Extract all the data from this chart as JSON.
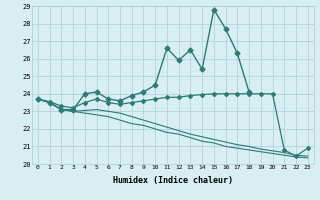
{
  "xlabel": "Humidex (Indice chaleur)",
  "ylabel": "",
  "xlim": [
    -0.5,
    23.5
  ],
  "ylim": [
    20,
    29.0
  ],
  "yticks": [
    20,
    21,
    22,
    23,
    24,
    25,
    26,
    27,
    28,
    29
  ],
  "xticks": [
    0,
    1,
    2,
    3,
    4,
    5,
    6,
    7,
    8,
    9,
    10,
    11,
    12,
    13,
    14,
    15,
    16,
    17,
    18,
    19,
    20,
    21,
    22,
    23
  ],
  "bg_color": "#d7eef3",
  "grid_color": "#aecdd5",
  "line_color": "#2e7b6f",
  "lines": [
    {
      "x": [
        0,
        1,
        2,
        3,
        4,
        5,
        6,
        7,
        8,
        9,
        10,
        11,
        12,
        13,
        14,
        15,
        16,
        17,
        18,
        19,
        20,
        21,
        22,
        23
      ],
      "y": [
        23.7,
        23.5,
        23.1,
        23.1,
        24.0,
        24.1,
        23.7,
        23.6,
        23.9,
        24.1,
        24.5,
        26.6,
        25.9,
        26.5,
        25.4,
        28.8,
        27.7,
        26.3,
        24.1,
        null,
        null,
        null,
        null,
        null
      ],
      "marker": "D",
      "markersize": 2.5,
      "linewidth": 1.0
    },
    {
      "x": [
        0,
        1,
        2,
        3,
        4,
        5,
        6,
        7,
        8,
        9,
        10,
        11,
        12,
        13,
        14,
        15,
        16,
        17,
        18,
        19,
        20,
        21,
        22,
        23
      ],
      "y": [
        23.7,
        23.55,
        23.3,
        23.2,
        23.5,
        23.7,
        23.5,
        23.4,
        23.5,
        23.6,
        23.7,
        23.8,
        23.8,
        23.9,
        23.95,
        24.0,
        24.0,
        24.0,
        24.0,
        24.0,
        24.0,
        20.8,
        20.45,
        20.9
      ],
      "marker": "D",
      "markersize": 2.0,
      "linewidth": 0.9
    },
    {
      "x": [
        0,
        1,
        2,
        3,
        4,
        5,
        6,
        7,
        8,
        9,
        10,
        11,
        12,
        13,
        14,
        15,
        16,
        17,
        18,
        19,
        20,
        21,
        22,
        23
      ],
      "y": [
        23.7,
        23.5,
        23.1,
        23.0,
        22.9,
        22.8,
        22.7,
        22.5,
        22.3,
        22.2,
        22.0,
        21.8,
        21.7,
        21.5,
        21.3,
        21.2,
        21.0,
        20.9,
        20.8,
        20.7,
        20.6,
        20.5,
        20.4,
        20.35
      ],
      "marker": null,
      "markersize": 0,
      "linewidth": 0.8
    },
    {
      "x": [
        0,
        1,
        2,
        3,
        4,
        5,
        6,
        7,
        8,
        9,
        10,
        11,
        12,
        13,
        14,
        15,
        16,
        17,
        18,
        19,
        20,
        21,
        22,
        23
      ],
      "y": [
        23.7,
        23.5,
        23.1,
        23.0,
        23.05,
        23.1,
        23.0,
        22.9,
        22.7,
        22.5,
        22.3,
        22.1,
        21.9,
        21.7,
        21.55,
        21.4,
        21.25,
        21.1,
        21.0,
        20.85,
        20.75,
        20.65,
        20.5,
        20.45
      ],
      "marker": null,
      "markersize": 0,
      "linewidth": 0.8
    }
  ]
}
